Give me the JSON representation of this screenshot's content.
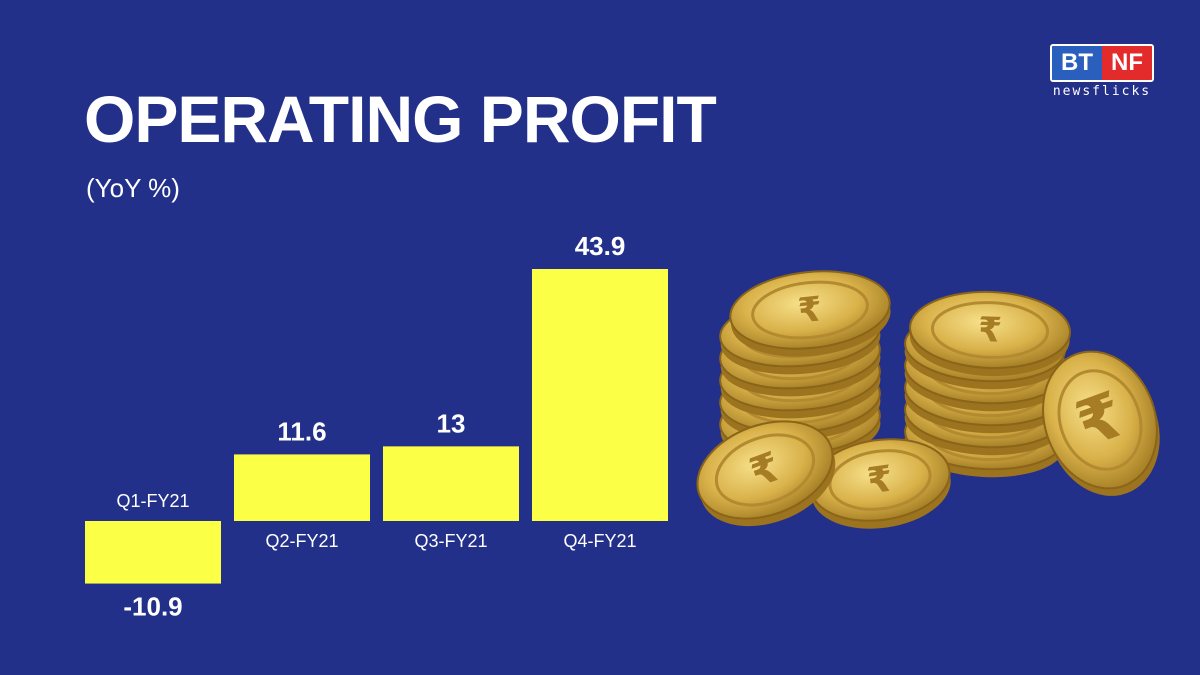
{
  "title": "OPERATING PROFIT",
  "subtitle": "(YoY %)",
  "logo": {
    "left": "BT",
    "right": "NF",
    "sub": "newsflicks"
  },
  "colors": {
    "background": "#23308a",
    "bar": "#fbff45",
    "text": "#ffffff"
  },
  "decoration": {
    "icon": "rupee-coins-icon"
  },
  "chart_data": {
    "type": "bar",
    "categories": [
      "Q1-FY21",
      "Q2-FY21",
      "Q3-FY21",
      "Q4-FY21"
    ],
    "values": [
      -10.9,
      11.6,
      13,
      43.9
    ],
    "value_labels": [
      "-10.9",
      "11.6",
      "13",
      "43.9"
    ],
    "title": "OPERATING PROFIT",
    "subtitle": "(YoY %)",
    "xlabel": "",
    "ylabel": "",
    "grid": false
  }
}
